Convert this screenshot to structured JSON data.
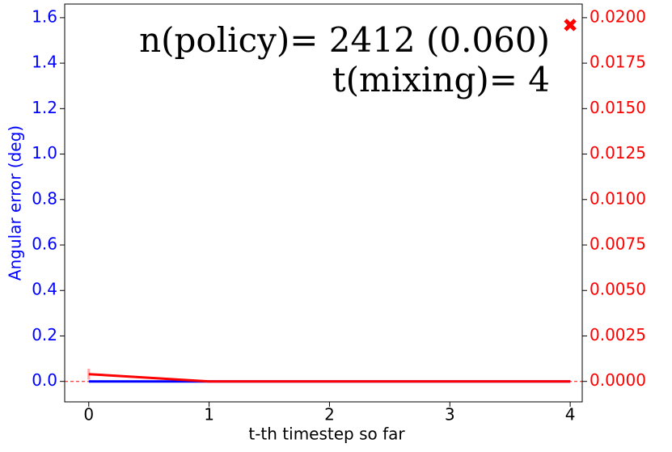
{
  "chart_data": {
    "type": "line",
    "xlabel": "t-th timestep so far",
    "ylabel": "Angular error (deg)",
    "annotations": [
      "n(policy)= 2412 (0.060)",
      "t(mixing)= 4"
    ],
    "x": [
      0,
      1,
      2,
      3,
      4
    ],
    "series": [
      {
        "color": "#0000ff",
        "axis": "y",
        "values": [
          0,
          0,
          0,
          0,
          0
        ]
      },
      {
        "color": "#ff0000",
        "axis": "y2",
        "values": [
          0.0004,
          0,
          0,
          0,
          0
        ],
        "errors": [
          0.0003,
          0,
          0,
          0,
          0
        ]
      }
    ],
    "markers": [
      {
        "x": 4,
        "value": 0.0196,
        "color": "#ff0000",
        "axis": "y2"
      }
    ],
    "hline": {
      "value": 0,
      "axis": "y2",
      "color": "#ff0000",
      "style": "dashed"
    },
    "xlim": [
      -0.2,
      4.1
    ],
    "ylim": [
      -0.09,
      1.66
    ],
    "y2lim": [
      -0.001125,
      0.02075
    ],
    "xticks": [
      0,
      1,
      2,
      3,
      4
    ],
    "yticks": [
      {
        "value": 0,
        "label": "0.0"
      },
      {
        "value": 0.2,
        "label": "0.2"
      },
      {
        "value": 0.4,
        "label": "0.4"
      },
      {
        "value": 0.6,
        "label": "0.6"
      },
      {
        "value": 0.8,
        "label": "0.8"
      },
      {
        "value": 1,
        "label": "1.0"
      },
      {
        "value": 1.2,
        "label": "1.2"
      },
      {
        "value": 1.4,
        "label": "1.4"
      },
      {
        "value": 1.6,
        "label": "1.6"
      }
    ],
    "y2ticks": [
      {
        "value": 0,
        "label": "0.0000"
      },
      {
        "value": 0.0025,
        "label": "0.0025"
      },
      {
        "value": 0.005,
        "label": "0.0050"
      },
      {
        "value": 0.0075,
        "label": "0.0075"
      },
      {
        "value": 0.01,
        "label": "0.0100"
      },
      {
        "value": 0.0125,
        "label": "0.0125"
      },
      {
        "value": 0.015,
        "label": "0.0150"
      },
      {
        "value": 0.0175,
        "label": "0.0175"
      },
      {
        "value": 0.02,
        "label": "0.0200"
      }
    ],
    "ycolor": "#0000ff",
    "y2color": "#ff0000"
  }
}
